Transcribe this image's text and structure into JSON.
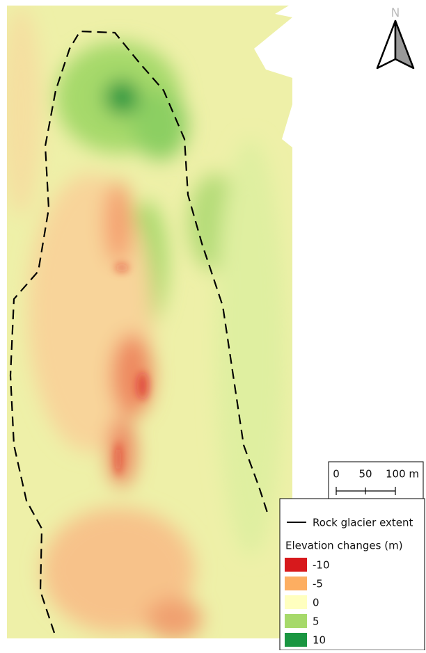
{
  "north_arrow": {
    "label": "N"
  },
  "scale_bar": {
    "labels": [
      "0",
      "50",
      "100 m"
    ]
  },
  "legend": {
    "line_label": "Rock glacier extent",
    "title": "Elevation changes (m)",
    "items": [
      {
        "label": "-10",
        "color": "#d7191c"
      },
      {
        "label": "-5",
        "color": "#fdae61"
      },
      {
        "label": "0",
        "color": "#ffffbf"
      },
      {
        "label": "5",
        "color": "#a6d96a"
      },
      {
        "label": "10",
        "color": "#1a9641"
      }
    ]
  }
}
